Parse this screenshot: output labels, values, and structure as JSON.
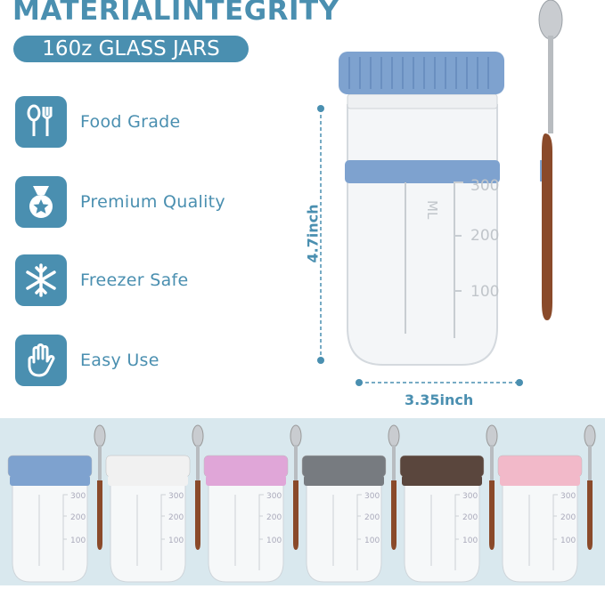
{
  "header": {
    "title": "MATERIALINTEGRITY",
    "subtitle": "160z GLASS JARS"
  },
  "features": [
    {
      "label": "Food Grade",
      "icon": "spoon-fork-icon"
    },
    {
      "label": "Premium Quality",
      "icon": "medal-star-icon"
    },
    {
      "label": "Freezer Safe",
      "icon": "snowflake-icon"
    },
    {
      "label": "Easy Use",
      "icon": "hand-icon"
    }
  ],
  "dimensions": {
    "height": "4.7inch",
    "width": "3.35inch"
  },
  "jar_markings": {
    "unit": "ML",
    "levels": [
      "300",
      "200",
      "100"
    ]
  },
  "colors": {
    "accent": "#4a8fb0",
    "band": "#d9e8ee"
  },
  "variants": [
    {
      "color": "blue",
      "lid": "#7ea2cf"
    },
    {
      "color": "white",
      "lid": "#f1f1f1"
    },
    {
      "color": "pink",
      "lid": "#e0a6d8"
    },
    {
      "color": "gray",
      "lid": "#777b80"
    },
    {
      "color": "brown",
      "lid": "#5a463d"
    },
    {
      "color": "light-pink",
      "lid": "#f2b9c9"
    }
  ]
}
